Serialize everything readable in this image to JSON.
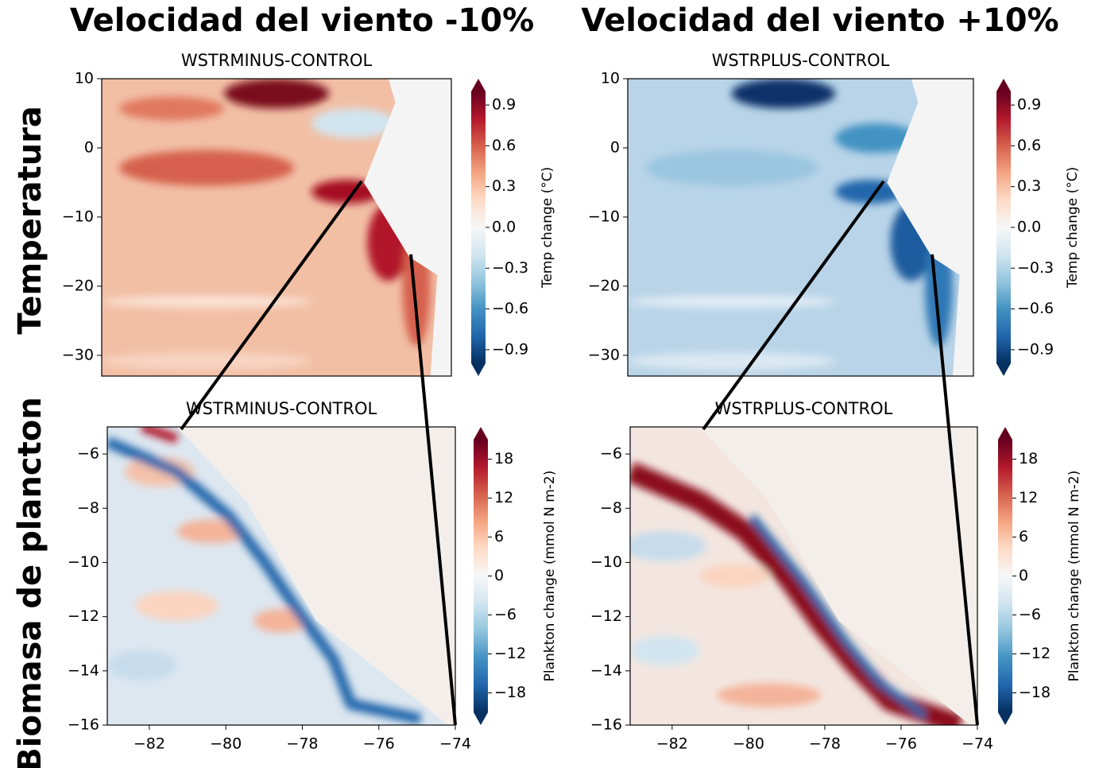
{
  "column_titles": [
    "Velocidad del viento -10%",
    "Velocidad del viento +10%"
  ],
  "row_labels": [
    "Temperatura",
    "Biomasa de plancton"
  ],
  "chart_data": [
    {
      "type": "heatmap",
      "title": "WSTRMINUS-CONTROL",
      "xlim": [
        -90,
        -70
      ],
      "ylim": [
        -33,
        10
      ],
      "yticks": [
        {
          "value": 10,
          "label": "10"
        },
        {
          "value": 0,
          "label": "0"
        },
        {
          "value": -10,
          "label": "−10"
        },
        {
          "value": -20,
          "label": "−20"
        },
        {
          "value": -30,
          "label": "−30"
        }
      ],
      "colorbar": {
        "label": "Temp change (°C)",
        "clim": [
          -1,
          1
        ],
        "ticks": [
          {
            "value": 0.9,
            "label": "0.9"
          },
          {
            "value": 0.6,
            "label": "0.6"
          },
          {
            "value": 0.3,
            "label": "0.3"
          },
          {
            "value": 0,
            "label": "0.0"
          },
          {
            "value": -0.3,
            "label": "−0.3"
          },
          {
            "value": -0.6,
            "label": "−0.6"
          },
          {
            "value": -0.9,
            "label": "−0.9"
          }
        ]
      }
    },
    {
      "type": "heatmap",
      "title": "WSTRPLUS-CONTROL",
      "xlim": [
        -90,
        -70
      ],
      "ylim": [
        -33,
        10
      ],
      "yticks": [
        {
          "value": 10,
          "label": "10"
        },
        {
          "value": 0,
          "label": "0"
        },
        {
          "value": -10,
          "label": "−10"
        },
        {
          "value": -20,
          "label": "−20"
        },
        {
          "value": -30,
          "label": "−30"
        }
      ],
      "colorbar": {
        "label": "Temp change (°C)",
        "clim": [
          -1,
          1
        ],
        "ticks": [
          {
            "value": 0.9,
            "label": "0.9"
          },
          {
            "value": 0.6,
            "label": "0.6"
          },
          {
            "value": 0.3,
            "label": "0.3"
          },
          {
            "value": 0,
            "label": "0.0"
          },
          {
            "value": -0.3,
            "label": "−0.3"
          },
          {
            "value": -0.6,
            "label": "−0.6"
          },
          {
            "value": -0.9,
            "label": "−0.9"
          }
        ]
      }
    },
    {
      "type": "heatmap",
      "title": "WSTRMINUS-CONTROL",
      "xlim": [
        -83.1,
        -74
      ],
      "ylim": [
        -16,
        -5
      ],
      "xticks": [
        {
          "value": -82,
          "label": "−82"
        },
        {
          "value": -80,
          "label": "−80"
        },
        {
          "value": -78,
          "label": "−78"
        },
        {
          "value": -76,
          "label": "−76"
        },
        {
          "value": -74,
          "label": "−74"
        }
      ],
      "yticks": [
        {
          "value": -6,
          "label": "−6"
        },
        {
          "value": -8,
          "label": "−8"
        },
        {
          "value": -10,
          "label": "−10"
        },
        {
          "value": -12,
          "label": "−12"
        },
        {
          "value": -14,
          "label": "−14"
        },
        {
          "value": -16,
          "label": "−16"
        }
      ],
      "colorbar": {
        "label": "Plankton change (mmol N m-2)",
        "clim": [
          -21,
          21
        ],
        "ticks": [
          18,
          12,
          6,
          0,
          {
            "value": -6,
            "label": "−6"
          },
          {
            "value": -12,
            "label": "−12"
          },
          {
            "value": -18,
            "label": "−18"
          }
        ]
      }
    },
    {
      "type": "heatmap",
      "title": "WSTRPLUS-CONTROL",
      "xlim": [
        -83.1,
        -74
      ],
      "ylim": [
        -16,
        -5
      ],
      "xticks": [
        {
          "value": -82,
          "label": "−82"
        },
        {
          "value": -80,
          "label": "−80"
        },
        {
          "value": -78,
          "label": "−78"
        },
        {
          "value": -76,
          "label": "−76"
        },
        {
          "value": -74,
          "label": "−74"
        }
      ],
      "yticks": [
        {
          "value": -6,
          "label": "−6"
        },
        {
          "value": -8,
          "label": "−8"
        },
        {
          "value": -10,
          "label": "−10"
        },
        {
          "value": -12,
          "label": "−12"
        },
        {
          "value": -14,
          "label": "−14"
        },
        {
          "value": -16,
          "label": "−16"
        }
      ],
      "colorbar": {
        "label": "Plankton change (mmol N m-2)",
        "clim": [
          -21,
          21
        ],
        "ticks": [
          18,
          12,
          6,
          0,
          {
            "value": -6,
            "label": "−6"
          },
          {
            "value": -12,
            "label": "−12"
          },
          {
            "value": -18,
            "label": "−18"
          }
        ]
      }
    }
  ]
}
